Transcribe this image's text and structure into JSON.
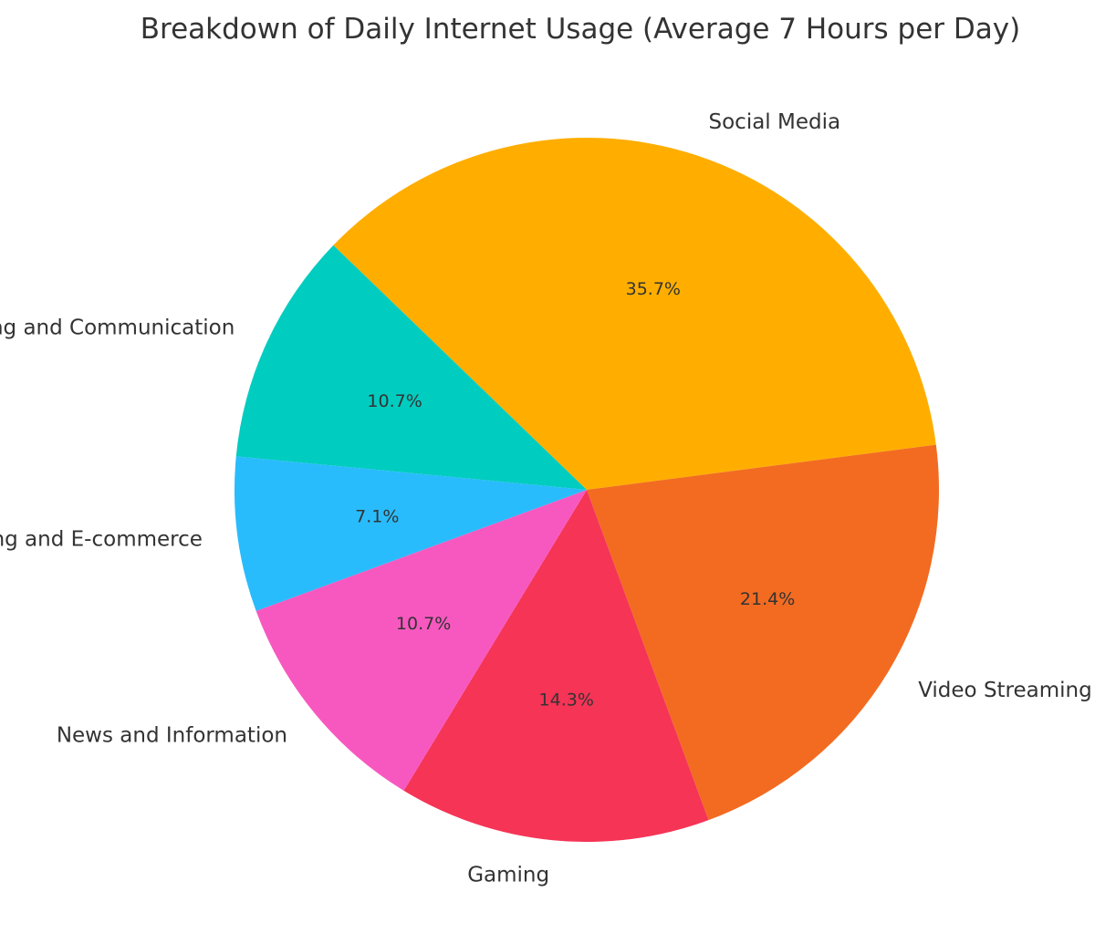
{
  "chart_data": {
    "type": "pie",
    "title": "Breakdown of Daily Internet Usage (Average 7 Hours per Day)",
    "start_angle_deg": -46,
    "direction": "clockwise",
    "slices": [
      {
        "label": "Social Media",
        "value": 35.7,
        "pct_label": "35.7%",
        "color": "#FFAE00"
      },
      {
        "label": "Video Streaming",
        "value": 21.4,
        "pct_label": "21.4%",
        "color": "#F26B21"
      },
      {
        "label": "Gaming",
        "value": 14.3,
        "pct_label": "14.3%",
        "color": "#F53456"
      },
      {
        "label": "News and Information",
        "value": 10.7,
        "pct_label": "10.7%",
        "color": "#F758C0"
      },
      {
        "label": "Shopping and E-commerce",
        "value": 7.1,
        "pct_label": "7.1%",
        "color": "#29BCFC"
      },
      {
        "label": "Messaging and Communication",
        "value": 10.7,
        "pct_label": "10.7%",
        "color": "#00CCC0"
      }
    ]
  }
}
